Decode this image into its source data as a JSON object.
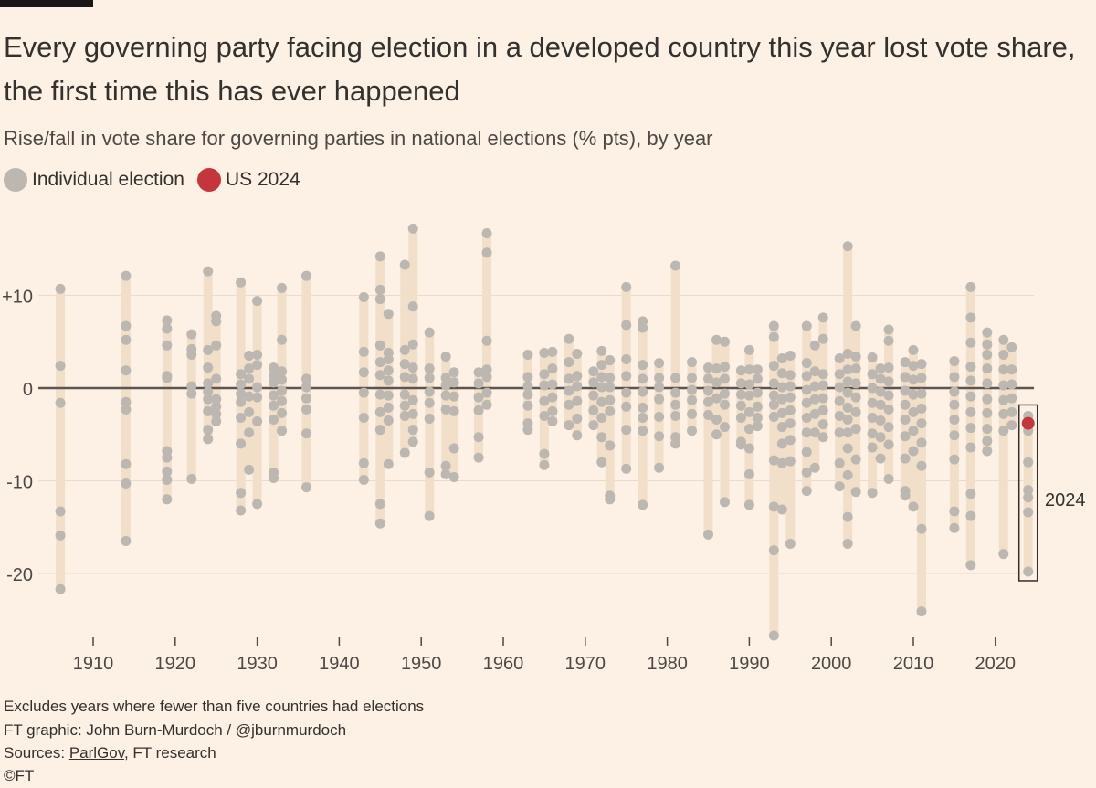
{
  "title": "Every governing party facing election in a developed country this year lost vote share, the first time this has ever happened",
  "subtitle": "Rise/fall in vote share for governing parties in national elections (% pts), by year",
  "legend": [
    {
      "label": "Individual election",
      "color": "#bcb7b1"
    },
    {
      "label": "US 2024",
      "color": "#c4353c"
    }
  ],
  "annotation": "2024",
  "footer": {
    "note": "Excludes years where fewer than five countries had elections",
    "credit": "FT graphic: John Burn-Murdoch / @jburnmurdoch",
    "sources_prefix": "Sources: ",
    "sources_link": "ParlGov",
    "sources_suffix": ", FT research",
    "copyright": "©FT"
  },
  "chart_data": {
    "type": "scatter",
    "xlabel": "",
    "ylabel": "",
    "xlim": [
      1903,
      2027
    ],
    "ylim": [
      -28,
      18
    ],
    "xticks": [
      "1910",
      "1920",
      "1930",
      "1940",
      "1950",
      "1960",
      "1970",
      "1980",
      "1990",
      "2000",
      "2010",
      "2020"
    ],
    "yticks": [
      {
        "value": 10,
        "label": "+10"
      },
      {
        "value": 0,
        "label": "0"
      },
      {
        "value": -10,
        "label": "-10"
      },
      {
        "value": -20,
        "label": "-20"
      }
    ],
    "colors": {
      "point": "#bcb7b1",
      "highlight": "#c4353c",
      "range": "#f1dfc9",
      "zero": "#5b5653",
      "grid": "#e9dccd"
    },
    "highlight": {
      "year": 2024,
      "value": -3.8,
      "label": "US 2024"
    },
    "series": [
      {
        "year": 1906,
        "values": [
          10.7,
          2.4,
          -1.6,
          -13.3,
          -15.9,
          -21.7
        ]
      },
      {
        "year": 1914,
        "values": [
          12.1,
          6.7,
          5.2,
          1.9,
          -1.5,
          -2.3,
          -8.2,
          -10.3,
          -16.5
        ]
      },
      {
        "year": 1919,
        "values": [
          7.3,
          6.4,
          4.6,
          1.3,
          1.1,
          -6.8,
          -7.5,
          -9.0,
          -9.9,
          -12.0
        ]
      },
      {
        "year": 1922,
        "values": [
          5.8,
          4.2,
          3.6,
          0.2,
          -0.6,
          -9.8
        ]
      },
      {
        "year": 1924,
        "values": [
          12.6,
          4.1,
          2.2,
          0.5,
          -0.4,
          -1.2,
          -2.5,
          -4.5,
          -5.5
        ]
      },
      {
        "year": 1925,
        "values": [
          7.8,
          7.2,
          4.6,
          1.0,
          -1.2,
          -2.0,
          -2.8,
          -3.6
        ]
      },
      {
        "year": 1928,
        "values": [
          11.4,
          1.5,
          0.4,
          -0.6,
          -1.5,
          -3.2,
          -6.0,
          -11.3,
          -13.2
        ]
      },
      {
        "year": 1929,
        "values": [
          3.5,
          2.1,
          1.0,
          -0.9,
          -2.6,
          -4.8,
          -8.8
        ]
      },
      {
        "year": 1930,
        "values": [
          9.4,
          3.6,
          2.5,
          0.1,
          -1.0,
          -3.6,
          -12.5
        ]
      },
      {
        "year": 1932,
        "values": [
          2.2,
          1.4,
          0.6,
          -0.8,
          -1.9,
          -3.4,
          -9.1,
          -9.7
        ]
      },
      {
        "year": 1933,
        "values": [
          10.8,
          5.2,
          1.8,
          0.9,
          -0.3,
          -1.4,
          -2.7,
          -4.6
        ]
      },
      {
        "year": 1936,
        "values": [
          12.1,
          1.0,
          0.1,
          -1.1,
          -2.3,
          -4.9,
          -10.7
        ]
      },
      {
        "year": 1943,
        "values": [
          9.8,
          3.9,
          1.7,
          -0.5,
          -3.2,
          -8.1,
          -9.9
        ]
      },
      {
        "year": 1945,
        "values": [
          14.2,
          10.6,
          9.6,
          4.6,
          2.8,
          1.4,
          -0.7,
          -2.6,
          -4.5,
          -12.5,
          -14.6
        ]
      },
      {
        "year": 1946,
        "values": [
          8.0,
          3.8,
          3.1,
          1.9,
          0.8,
          -0.8,
          -2.1,
          -3.5,
          -8.2
        ]
      },
      {
        "year": 1948,
        "values": [
          13.3,
          4.1,
          2.6,
          1.2,
          -0.7,
          -1.9,
          -3.0,
          -7.0
        ]
      },
      {
        "year": 1949,
        "values": [
          17.2,
          8.8,
          4.7,
          2.2,
          1.0,
          -1.3,
          -2.8,
          -4.5,
          -5.8
        ]
      },
      {
        "year": 1951,
        "values": [
          6.0,
          2.1,
          1.1,
          -0.4,
          -1.6,
          -3.3,
          -9.1,
          -13.8
        ]
      },
      {
        "year": 1953,
        "values": [
          3.4,
          1.1,
          0.3,
          -0.8,
          -2.3,
          -8.4,
          -9.3
        ]
      },
      {
        "year": 1954,
        "values": [
          1.7,
          0.6,
          -0.9,
          -2.5,
          -6.5,
          -9.6
        ]
      },
      {
        "year": 1957,
        "values": [
          1.7,
          0.5,
          -1.0,
          -2.4,
          -5.3,
          -7.5
        ]
      },
      {
        "year": 1958,
        "values": [
          16.7,
          14.6,
          5.1,
          2.0,
          1.2,
          -0.5,
          -1.8
        ]
      },
      {
        "year": 1963,
        "values": [
          3.6,
          1.2,
          0.2,
          -0.7,
          -1.9,
          -3.8,
          -4.5
        ]
      },
      {
        "year": 1965,
        "values": [
          3.8,
          1.5,
          0.3,
          -1.4,
          -3.0,
          -7.1,
          -8.3
        ]
      },
      {
        "year": 1966,
        "values": [
          3.9,
          2.1,
          0.4,
          -1.0,
          -2.5,
          -3.6
        ]
      },
      {
        "year": 1968,
        "values": [
          5.3,
          2.8,
          1.0,
          -0.3,
          -1.8,
          -4.0
        ]
      },
      {
        "year": 1969,
        "values": [
          3.7,
          1.3,
          0.2,
          -1.4,
          -3.3,
          -5.1
        ]
      },
      {
        "year": 1971,
        "values": [
          1.8,
          0.6,
          -0.8,
          -2.4,
          -4.0
        ]
      },
      {
        "year": 1972,
        "values": [
          4.0,
          2.5,
          1.2,
          0.1,
          -1.5,
          -3.2,
          -5.3,
          -8.0
        ]
      },
      {
        "year": 1973,
        "values": [
          3.0,
          1.1,
          0.1,
          -1.3,
          -2.5,
          -6.2,
          -11.6,
          -12.0
        ]
      },
      {
        "year": 1975,
        "values": [
          10.9,
          6.8,
          3.1,
          1.3,
          -0.5,
          -2.0,
          -4.5,
          -8.7
        ]
      },
      {
        "year": 1977,
        "values": [
          7.2,
          6.5,
          2.5,
          1.0,
          -0.4,
          -2.1,
          -3.2,
          -4.6,
          -12.6
        ]
      },
      {
        "year": 1979,
        "values": [
          2.7,
          1.1,
          0.1,
          -1.2,
          -3.1,
          -5.2,
          -8.6
        ]
      },
      {
        "year": 1981,
        "values": [
          13.2,
          1.1,
          -0.5,
          -1.8,
          -3.0,
          -5.3,
          -6.0
        ]
      },
      {
        "year": 1983,
        "values": [
          2.8,
          1.1,
          -0.2,
          -1.3,
          -2.8,
          -4.6
        ]
      },
      {
        "year": 1985,
        "values": [
          2.2,
          1.0,
          -0.3,
          -1.5,
          -2.9,
          -15.8
        ]
      },
      {
        "year": 1986,
        "values": [
          5.2,
          2.1,
          0.6,
          -1.1,
          -3.4,
          -5.0
        ]
      },
      {
        "year": 1987,
        "values": [
          5.0,
          2.3,
          1.0,
          -0.6,
          -1.8,
          -4.2,
          -12.3
        ]
      },
      {
        "year": 1989,
        "values": [
          1.9,
          0.5,
          -0.7,
          -1.9,
          -3.2,
          -5.8,
          -6.1
        ]
      },
      {
        "year": 1990,
        "values": [
          4.1,
          2.0,
          0.4,
          -0.8,
          -2.6,
          -4.4,
          -6.5,
          -9.3,
          -12.6
        ]
      },
      {
        "year": 1991,
        "values": [
          2.0,
          1.0,
          -0.5,
          -2.0,
          -3.2,
          -4.1
        ]
      },
      {
        "year": 1993,
        "values": [
          6.7,
          5.5,
          2.4,
          0.5,
          -0.8,
          -1.8,
          -3.1,
          -7.8,
          -12.8,
          -17.5,
          -26.7
        ]
      },
      {
        "year": 1994,
        "values": [
          3.2,
          1.6,
          0.1,
          -1.2,
          -2.7,
          -4.2,
          -6.0,
          -8.1,
          -13.1
        ]
      },
      {
        "year": 1995,
        "values": [
          3.5,
          1.4,
          0.2,
          -1.0,
          -2.4,
          -3.8,
          -5.6,
          -7.9,
          -16.8
        ]
      },
      {
        "year": 1997,
        "values": [
          6.7,
          2.7,
          1.3,
          -0.2,
          -1.6,
          -3.2,
          -4.8,
          -6.9,
          -9.1,
          -11.1
        ]
      },
      {
        "year": 1998,
        "values": [
          4.6,
          1.8,
          0.2,
          -1.2,
          -2.8,
          -4.8,
          -8.6
        ]
      },
      {
        "year": 1999,
        "values": [
          7.6,
          5.3,
          1.5,
          0.3,
          -1.1,
          -2.4,
          -3.9,
          -5.3
        ]
      },
      {
        "year": 2001,
        "values": [
          3.2,
          1.5,
          0.1,
          -1.4,
          -3.0,
          -4.8,
          -8.1,
          -10.6
        ]
      },
      {
        "year": 2002,
        "values": [
          15.3,
          3.7,
          2.0,
          0.7,
          -0.5,
          -2.1,
          -3.4,
          -4.8,
          -6.5,
          -9.4,
          -13.9,
          -16.8
        ]
      },
      {
        "year": 2003,
        "values": [
          6.7,
          3.4,
          2.1,
          0.5,
          -1.0,
          -2.6,
          -4.4,
          -7.7,
          -11.2
        ]
      },
      {
        "year": 2005,
        "values": [
          3.3,
          1.5,
          0.0,
          -1.6,
          -3.2,
          -4.9,
          -6.4,
          -11.3
        ]
      },
      {
        "year": 2006,
        "values": [
          2.1,
          1.0,
          -0.4,
          -1.8,
          -3.5,
          -5.3,
          -7.6
        ]
      },
      {
        "year": 2007,
        "values": [
          6.3,
          5.1,
          2.2,
          0.7,
          -0.8,
          -2.3,
          -4.2,
          -6.1,
          -9.8
        ]
      },
      {
        "year": 2009,
        "values": [
          2.8,
          1.2,
          -0.3,
          -1.8,
          -3.4,
          -5.2,
          -7.6,
          -11.1,
          -11.6
        ]
      },
      {
        "year": 2010,
        "values": [
          4.1,
          2.4,
          0.9,
          -0.7,
          -2.6,
          -4.6,
          -6.8,
          -12.8
        ]
      },
      {
        "year": 2011,
        "values": [
          2.6,
          1.1,
          -0.6,
          -2.2,
          -3.8,
          -5.9,
          -8.4,
          -15.2,
          -24.1
        ]
      },
      {
        "year": 2015,
        "values": [
          2.9,
          1.2,
          -0.4,
          -1.8,
          -3.4,
          -5.1,
          -7.7,
          -13.3,
          -15.1
        ]
      },
      {
        "year": 2017,
        "values": [
          10.9,
          7.6,
          4.9,
          2.3,
          0.8,
          -0.9,
          -2.6,
          -4.3,
          -6.4,
          -11.4,
          -13.8,
          -19.1
        ]
      },
      {
        "year": 2019,
        "values": [
          6.0,
          4.7,
          3.6,
          2.1,
          0.5,
          -1.2,
          -2.7,
          -4.4,
          -5.7,
          -6.8
        ]
      },
      {
        "year": 2021,
        "values": [
          5.2,
          3.6,
          2.0,
          0.3,
          -1.3,
          -2.8,
          -4.6,
          -17.9
        ]
      },
      {
        "year": 2022,
        "values": [
          4.4,
          2.0,
          0.4,
          -1.1,
          -2.6,
          -4.0
        ]
      },
      {
        "year": 2024,
        "values": [
          -3.0,
          -4.6,
          -8.0,
          -11.0,
          -11.8,
          -13.4,
          -19.8
        ]
      }
    ]
  }
}
